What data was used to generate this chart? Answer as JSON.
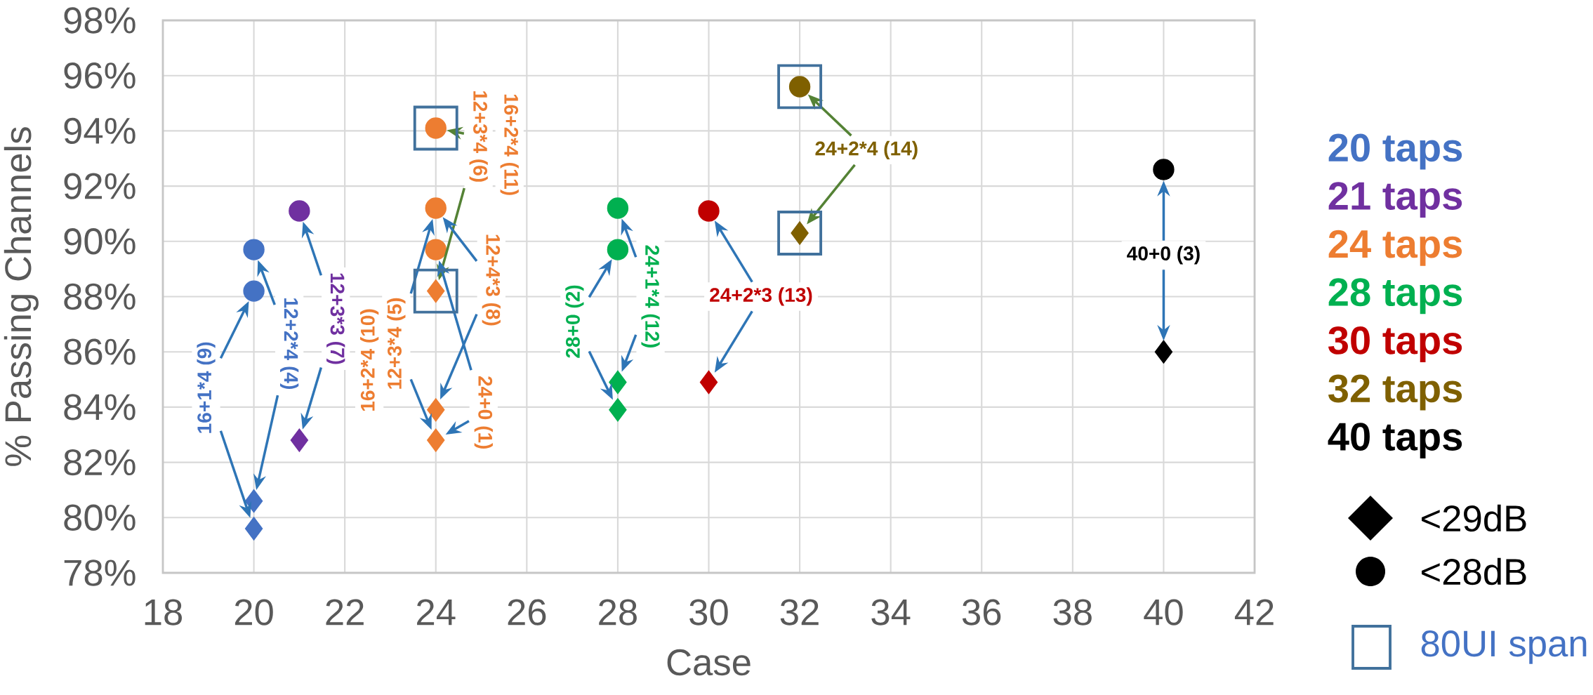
{
  "chart_data": {
    "type": "scatter",
    "xlabel": "Case",
    "ylabel": "% Passing Channels",
    "xlim": [
      18,
      42
    ],
    "xticks": [
      18,
      20,
      22,
      24,
      26,
      28,
      30,
      32,
      34,
      36,
      38,
      40,
      42
    ],
    "ylim": [
      78,
      98
    ],
    "yticks": [
      {
        "value": 78,
        "label": "78%"
      },
      {
        "value": 80,
        "label": "80%"
      },
      {
        "value": 82,
        "label": "82%"
      },
      {
        "value": 84,
        "label": "84%"
      },
      {
        "value": 86,
        "label": "86%"
      },
      {
        "value": 88,
        "label": "88%"
      },
      {
        "value": 90,
        "label": "90%"
      },
      {
        "value": 92,
        "label": "92%"
      },
      {
        "value": 94,
        "label": "94%"
      },
      {
        "value": 96,
        "label": "96%"
      },
      {
        "value": 98,
        "label": "98%"
      }
    ],
    "grid": true,
    "legend": "right",
    "series": [
      {
        "name": "20 taps",
        "color": "#4472c4",
        "marker": "diamond",
        "x": [
          20,
          20
        ],
        "values": [
          80.6,
          79.6
        ]
      },
      {
        "color": "#4472c4",
        "marker": "circle",
        "x": [
          20,
          20
        ],
        "values": [
          89.7,
          88.2
        ]
      },
      {
        "name": "21 taps",
        "color": "#7030a0",
        "marker": "diamond",
        "x": [
          21
        ],
        "values": [
          82.8
        ]
      },
      {
        "color": "#7030a0",
        "marker": "circle",
        "x": [
          21
        ],
        "values": [
          91.1
        ]
      },
      {
        "name": "24 taps",
        "color": "#ed7d31",
        "marker": "diamond",
        "x": [
          24,
          24,
          24
        ],
        "values": [
          88.2,
          83.9,
          82.8
        ]
      },
      {
        "color": "#ed7d31",
        "marker": "circle",
        "x": [
          24,
          24,
          24
        ],
        "values": [
          94.1,
          91.2,
          89.7
        ]
      },
      {
        "name": "28 taps",
        "color": "#00b050",
        "marker": "diamond",
        "x": [
          28,
          28
        ],
        "values": [
          84.9,
          83.9
        ]
      },
      {
        "color": "#00b050",
        "marker": "circle",
        "x": [
          28,
          28
        ],
        "values": [
          91.2,
          89.7
        ]
      },
      {
        "name": "30 taps",
        "color": "#c00000",
        "marker": "diamond",
        "x": [
          30
        ],
        "values": [
          84.9
        ]
      },
      {
        "color": "#c00000",
        "marker": "circle",
        "x": [
          30
        ],
        "values": [
          91.1
        ]
      },
      {
        "name": "32 taps",
        "color": "#7f6000",
        "marker": "diamond",
        "x": [
          32
        ],
        "values": [
          90.3
        ]
      },
      {
        "color": "#7f6000",
        "marker": "circle",
        "x": [
          32
        ],
        "values": [
          95.6
        ]
      },
      {
        "name": "40 taps",
        "color": "#000000",
        "marker": "diamond",
        "x": [
          40
        ],
        "values": [
          86.0
        ]
      },
      {
        "color": "#000000",
        "marker": "circle",
        "x": [
          40
        ],
        "values": [
          92.6
        ]
      }
    ],
    "annotations": [
      "16+1*4 (9)",
      "12+2*4 (4)",
      "12+3*3 (7)",
      "16+2*4 (10)",
      "12+3*4 (5)",
      "12+3*4 (6)",
      "16+2*4 (11)",
      "12+4*3 (8)",
      "24+0 (1)",
      "28+0 (2)",
      "24+1*4 (12)",
      "24+2*3 (13)",
      "24+2*4 (14)",
      "40+0 (3)",
      "<29dB",
      "<28dB",
      "80UI span"
    ]
  }
}
